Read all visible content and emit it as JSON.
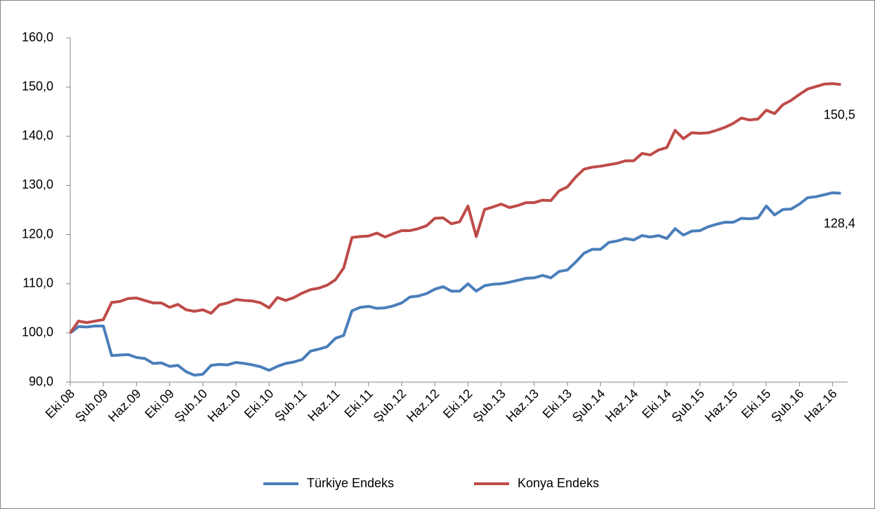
{
  "chart_data": {
    "type": "line",
    "categories": [
      "Eki.08",
      null,
      null,
      null,
      "Şub.09",
      null,
      null,
      null,
      "Haz.09",
      null,
      null,
      null,
      "Eki.09",
      null,
      null,
      null,
      "Şub.10",
      null,
      null,
      null,
      "Haz.10",
      null,
      null,
      null,
      "Eki.10",
      null,
      null,
      null,
      "Şub.11",
      null,
      null,
      null,
      "Haz.11",
      null,
      null,
      null,
      "Eki.11",
      null,
      null,
      null,
      "Şub.12",
      null,
      null,
      null,
      "Haz.12",
      null,
      null,
      null,
      "Eki.12",
      null,
      null,
      null,
      "Şub.13",
      null,
      null,
      null,
      "Haz.13",
      null,
      null,
      null,
      "Eki.13",
      null,
      null,
      null,
      "Şub.14",
      null,
      null,
      null,
      "Haz.14",
      null,
      null,
      null,
      "Eki.14",
      null,
      null,
      null,
      "Şub.15",
      null,
      null,
      null,
      "Haz.15",
      null,
      null,
      null,
      "Eki.15",
      null,
      null,
      null,
      "Şub.16",
      null,
      null,
      null,
      "Haz.16",
      null
    ],
    "series": [
      {
        "name": "Türkiye Endeks",
        "color": "#4a7ebb",
        "values": [
          100.0,
          101.3,
          101.2,
          101.4,
          101.4,
          95.4,
          95.5,
          95.6,
          95.0,
          94.8,
          93.8,
          93.9,
          93.2,
          93.4,
          92.1,
          91.4,
          91.6,
          93.4,
          93.6,
          93.5,
          94.0,
          93.8,
          93.5,
          93.1,
          92.4,
          93.2,
          93.8,
          94.1,
          94.6,
          96.3,
          96.7,
          97.2,
          98.9,
          99.5,
          104.5,
          105.2,
          105.4,
          105.0,
          105.1,
          105.5,
          106.1,
          107.3,
          107.5,
          108.0,
          108.9,
          109.4,
          108.5,
          108.5,
          110.0,
          108.5,
          109.6,
          109.9,
          110.0,
          110.3,
          110.7,
          111.1,
          111.2,
          111.7,
          111.2,
          112.5,
          112.8,
          114.4,
          116.2,
          117.0,
          117.0,
          118.4,
          118.7,
          119.2,
          118.9,
          119.8,
          119.5,
          119.8,
          119.2,
          121.2,
          119.9,
          120.7,
          120.8,
          121.6,
          122.1,
          122.5,
          122.5,
          123.3,
          123.2,
          123.4,
          125.8,
          124.0,
          125.1,
          125.2,
          126.2,
          127.5,
          127.7,
          128.1,
          128.5,
          128.4
        ],
        "value_labels": [
          null,
          null,
          null,
          null,
          null,
          null,
          null,
          null,
          null,
          null,
          null,
          null,
          null,
          null,
          null,
          null,
          null,
          null,
          null,
          null,
          null,
          null,
          null,
          null,
          null,
          null,
          null,
          null,
          null,
          null,
          null,
          null,
          null,
          null,
          null,
          null,
          null,
          null,
          null,
          null,
          null,
          null,
          null,
          null,
          null,
          null,
          null,
          null,
          null,
          null,
          null,
          null,
          null,
          null,
          null,
          null,
          null,
          null,
          null,
          null,
          null,
          null,
          null,
          null,
          null,
          null,
          null,
          null,
          null,
          null,
          null,
          null,
          null,
          null,
          null,
          null,
          null,
          null,
          null,
          null,
          null,
          null,
          null,
          null,
          null,
          null,
          null,
          null,
          null,
          null,
          null,
          null,
          null,
          "128,4"
        ]
      },
      {
        "name": "Konya Endeks",
        "color": "#be4b48",
        "values": [
          100.0,
          102.4,
          102.1,
          102.4,
          102.7,
          106.2,
          106.4,
          107.0,
          107.1,
          106.6,
          106.1,
          106.1,
          105.2,
          105.8,
          104.7,
          104.4,
          104.7,
          104.0,
          105.7,
          106.1,
          106.8,
          106.6,
          106.5,
          106.1,
          105.1,
          107.2,
          106.6,
          107.2,
          108.1,
          108.8,
          109.1,
          109.7,
          110.8,
          113.2,
          119.4,
          119.6,
          119.7,
          120.3,
          119.5,
          120.2,
          120.8,
          120.8,
          121.2,
          121.8,
          123.3,
          123.4,
          122.2,
          122.6,
          125.8,
          119.6,
          125.1,
          125.6,
          126.2,
          125.5,
          125.9,
          126.5,
          126.5,
          127.0,
          126.9,
          128.9,
          129.7,
          131.7,
          133.3,
          133.7,
          133.9,
          134.2,
          134.5,
          135.0,
          135.0,
          136.5,
          136.2,
          137.2,
          137.7,
          141.2,
          139.5,
          140.7,
          140.6,
          140.7,
          141.2,
          141.8,
          142.6,
          143.7,
          143.3,
          143.5,
          145.3,
          144.6,
          146.4,
          147.3,
          148.5,
          149.6,
          150.1,
          150.6,
          150.7,
          150.5
        ],
        "value_labels": [
          null,
          null,
          null,
          null,
          null,
          null,
          null,
          null,
          null,
          null,
          null,
          null,
          null,
          null,
          null,
          null,
          null,
          null,
          null,
          null,
          null,
          null,
          null,
          null,
          null,
          null,
          null,
          null,
          null,
          null,
          null,
          null,
          null,
          null,
          null,
          null,
          null,
          null,
          null,
          null,
          null,
          null,
          null,
          null,
          null,
          null,
          null,
          null,
          null,
          null,
          null,
          null,
          null,
          null,
          null,
          null,
          null,
          null,
          null,
          null,
          null,
          null,
          null,
          null,
          null,
          null,
          null,
          null,
          null,
          null,
          null,
          null,
          null,
          null,
          null,
          null,
          null,
          null,
          null,
          null,
          null,
          null,
          null,
          null,
          null,
          null,
          null,
          null,
          null,
          null,
          null,
          null,
          null,
          "150,5"
        ]
      }
    ],
    "ylim": [
      90,
      160
    ],
    "yticks": [
      {
        "value": 90,
        "label": "90,0"
      },
      {
        "value": 100,
        "label": "100,0"
      },
      {
        "value": 110,
        "label": "110,0"
      },
      {
        "value": 120,
        "label": "120,0"
      },
      {
        "value": 130,
        "label": "130,0"
      },
      {
        "value": 140,
        "label": "140,0"
      },
      {
        "value": 150,
        "label": "150,0"
      },
      {
        "value": 160,
        "label": "160,0"
      }
    ],
    "legend": "bottom"
  }
}
